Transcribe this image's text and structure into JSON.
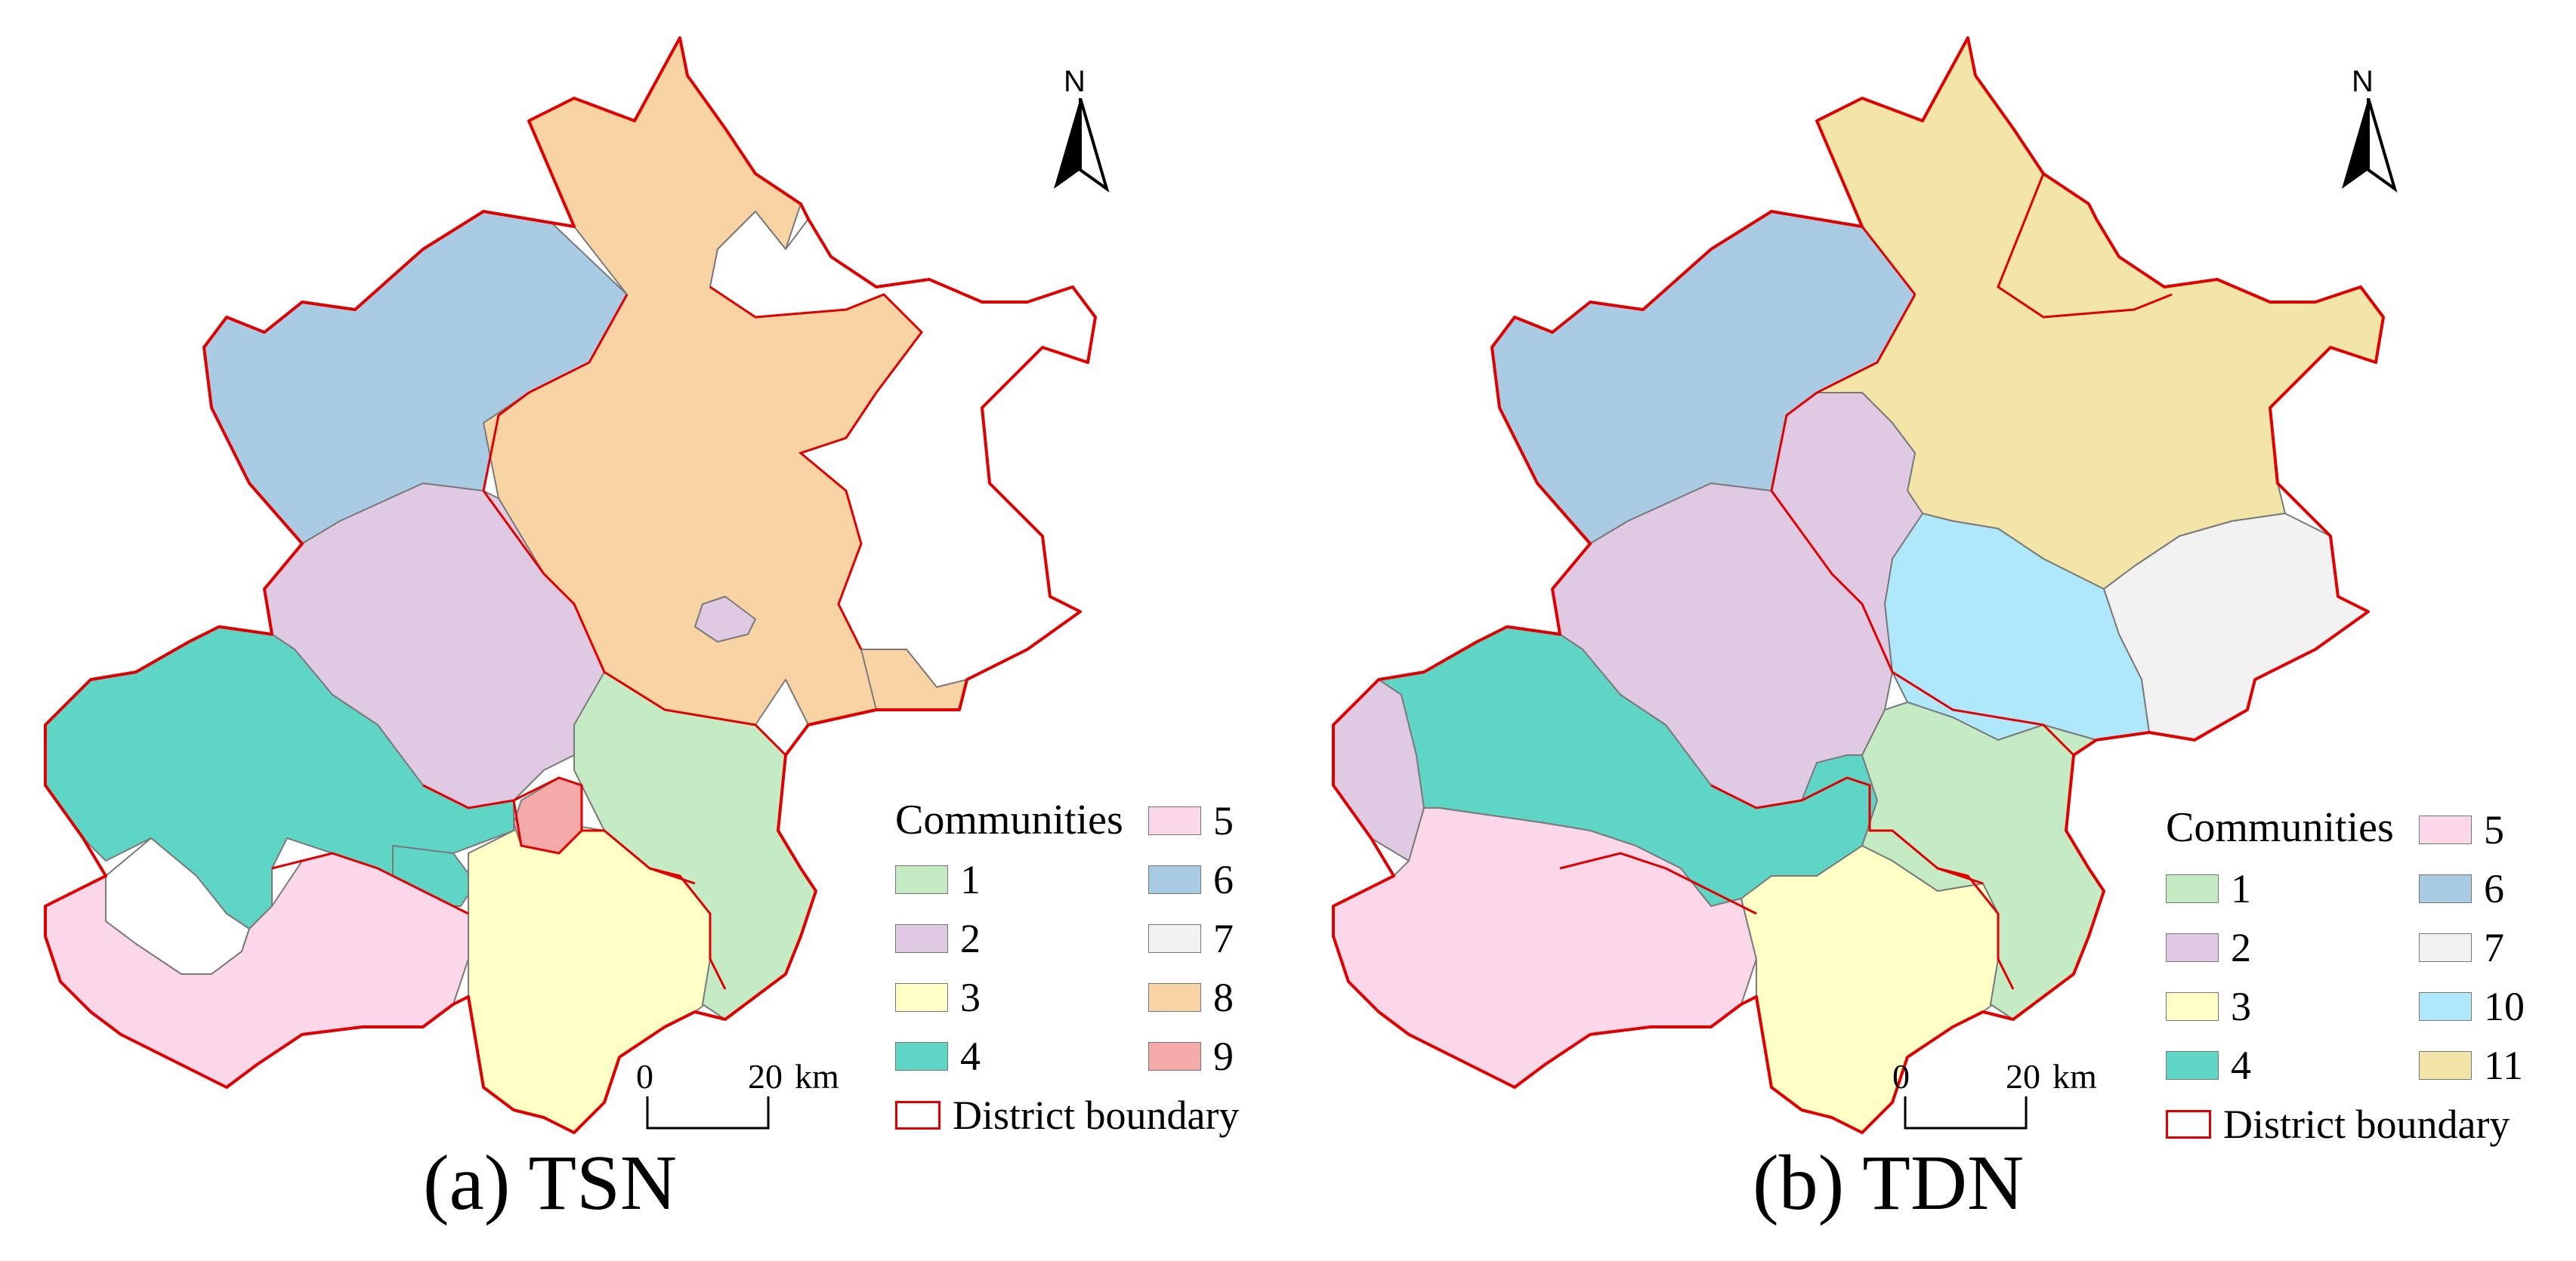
{
  "colors": {
    "community_1": "#c5ebc4",
    "community_2": "#dfc9e3",
    "community_3": "#ffffc6",
    "community_4": "#5fd5c6",
    "community_5": "#fbd7ea",
    "community_6": "#a9cbe3",
    "community_7": "#f2f2f2",
    "community_8": "#f8d3a4",
    "community_9": "#f3aaa8",
    "community_10": "#b0e8fb",
    "community_11": "#f3e4a8",
    "district_boundary": "#e00000",
    "internal_lines": "#7a7a7a"
  },
  "panel_a": {
    "caption": "(a) TSN",
    "north_label": "N",
    "scale": {
      "start": "0",
      "end": "20",
      "unit": "km"
    },
    "legend": {
      "title": "Communities",
      "items": [
        {
          "label": "1",
          "color": "#c5ebc4"
        },
        {
          "label": "2",
          "color": "#dfc9e3"
        },
        {
          "label": "3",
          "color": "#ffffc6"
        },
        {
          "label": "4",
          "color": "#5fd5c6"
        },
        {
          "label": "5",
          "color": "#fbd7ea"
        },
        {
          "label": "6",
          "color": "#a9cbe3"
        },
        {
          "label": "7",
          "color": "#f2f2f2"
        },
        {
          "label": "8",
          "color": "#f8d3a4"
        },
        {
          "label": "9",
          "color": "#f3aaa8"
        }
      ],
      "boundary_label": "District boundary"
    }
  },
  "panel_b": {
    "caption": "(b) TDN",
    "north_label": "N",
    "scale": {
      "start": "0",
      "end": "20",
      "unit": "km"
    },
    "legend": {
      "title": "Communities",
      "items": [
        {
          "label": "1",
          "color": "#c5ebc4"
        },
        {
          "label": "2",
          "color": "#dfc9e3"
        },
        {
          "label": "3",
          "color": "#ffffc6"
        },
        {
          "label": "4",
          "color": "#5fd5c6"
        },
        {
          "label": "5",
          "color": "#fbd7ea"
        },
        {
          "label": "6",
          "color": "#a9cbe3"
        },
        {
          "label": "7",
          "color": "#f2f2f2"
        },
        {
          "label": "10",
          "color": "#b0e8fb"
        },
        {
          "label": "11",
          "color": "#f3e4a8"
        }
      ],
      "boundary_label": "District boundary"
    }
  }
}
